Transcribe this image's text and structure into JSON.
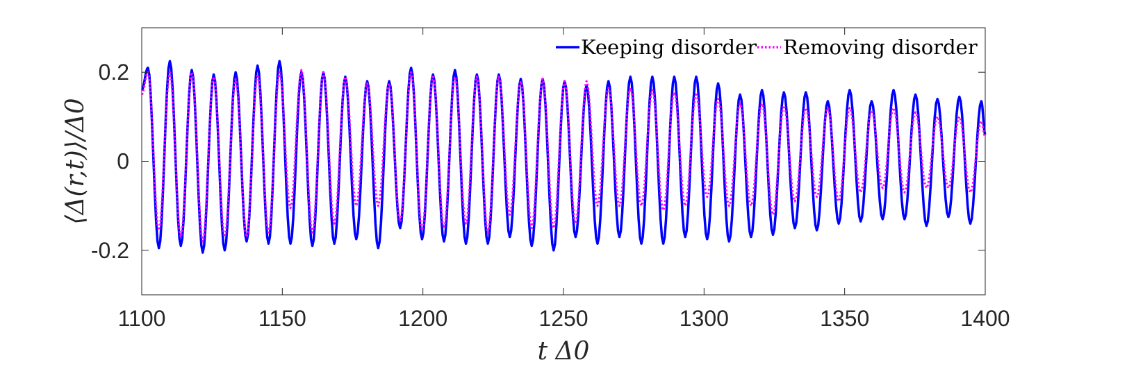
{
  "chart_data": {
    "type": "line",
    "title": "",
    "xlabel": "t Δ0",
    "ylabel": "⟨Δ(r,t)⟩/Δ0",
    "xlim": [
      1100,
      1400
    ],
    "ylim": [
      -0.3,
      0.3
    ],
    "xticks": [
      1100,
      1150,
      1200,
      1250,
      1300,
      1350,
      1400
    ],
    "xtick_labels": [
      "1100",
      "1150",
      "1200",
      "1250",
      "1300",
      "1350",
      "1400"
    ],
    "yticks": [
      -0.2,
      0,
      0.2
    ],
    "ytick_labels": [
      "-0.2",
      "0",
      "0.2"
    ],
    "grid": false,
    "legend_position": "top-right",
    "oscillation_period": 7.8,
    "series": [
      {
        "name": "Keeping disorder",
        "color": "#0000ff",
        "style": "solid",
        "offset": 0.012,
        "start_value": 0.16,
        "peaks": [
          0.21,
          0.225,
          0.205,
          0.195,
          0.2,
          0.215,
          0.225,
          0.2,
          0.2,
          0.19,
          0.18,
          0.18,
          0.21,
          0.195,
          0.205,
          0.195,
          0.195,
          0.185,
          0.185,
          0.18,
          0.17,
          0.18,
          0.19,
          0.19,
          0.19,
          0.19,
          0.175,
          0.15,
          0.16,
          0.155,
          0.155,
          0.135,
          0.16,
          0.135,
          0.16,
          0.15,
          0.14,
          0.145,
          0.135
        ],
        "troughs": [
          -0.195,
          -0.19,
          -0.205,
          -0.2,
          -0.18,
          -0.185,
          -0.185,
          -0.19,
          -0.185,
          -0.175,
          -0.195,
          -0.15,
          -0.175,
          -0.18,
          -0.185,
          -0.185,
          -0.17,
          -0.19,
          -0.2,
          -0.17,
          -0.185,
          -0.17,
          -0.185,
          -0.185,
          -0.17,
          -0.175,
          -0.18,
          -0.17,
          -0.165,
          -0.15,
          -0.155,
          -0.14,
          -0.135,
          -0.13,
          -0.13,
          -0.145,
          -0.125,
          -0.14,
          -0.135
        ],
        "end_value": 0.06
      },
      {
        "name": "Removing disorder",
        "color": "#ff00ff",
        "style": "dotted",
        "offset": 0.012,
        "start_value": 0.15,
        "peaks": [
          0.2,
          0.2,
          0.2,
          0.19,
          0.185,
          0.195,
          0.2,
          0.205,
          0.2,
          0.19,
          0.175,
          0.175,
          0.2,
          0.19,
          0.19,
          0.19,
          0.19,
          0.18,
          0.185,
          0.18,
          0.18,
          0.165,
          0.165,
          0.16,
          0.155,
          0.15,
          0.14,
          0.13,
          0.13,
          0.125,
          0.12,
          0.12,
          0.12,
          0.115,
          0.12,
          0.11,
          0.1,
          0.1,
          0.09
        ],
        "troughs": [
          -0.155,
          -0.17,
          -0.18,
          -0.17,
          -0.17,
          -0.16,
          -0.105,
          -0.16,
          -0.14,
          -0.1,
          -0.1,
          -0.135,
          -0.155,
          -0.15,
          -0.14,
          -0.16,
          -0.12,
          -0.15,
          -0.15,
          -0.14,
          -0.1,
          -0.1,
          -0.1,
          -0.11,
          -0.1,
          -0.08,
          -0.1,
          -0.1,
          -0.12,
          -0.09,
          -0.08,
          -0.09,
          -0.07,
          -0.06,
          -0.07,
          -0.06,
          -0.06,
          -0.07,
          -0.08
        ],
        "end_value": 0.055
      }
    ]
  }
}
